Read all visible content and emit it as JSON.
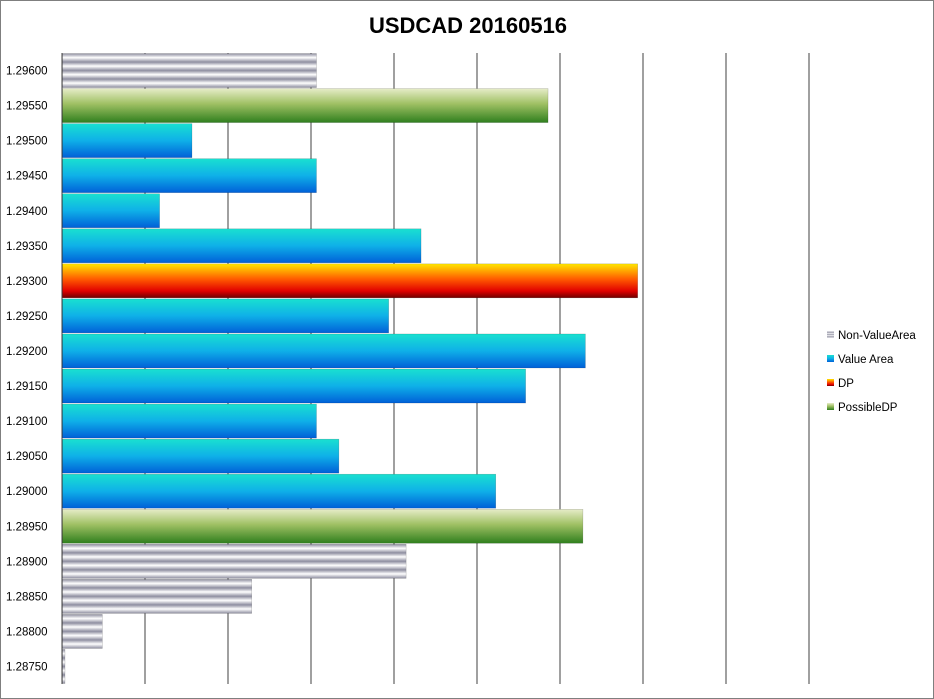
{
  "chart_data": {
    "type": "bar",
    "orientation": "horizontal",
    "title": "USDCAD 20160516",
    "xlabel": "",
    "ylabel": "",
    "grid": true,
    "legend_position": "right",
    "xlim": [
      0,
      26
    ],
    "categories": [
      "1.29600",
      "1.29550",
      "1.29500",
      "1.29450",
      "1.29400",
      "1.29350",
      "1.29300",
      "1.29250",
      "1.29200",
      "1.29150",
      "1.29100",
      "1.29050",
      "1.29000",
      "1.28950",
      "1.28900",
      "1.28850",
      "1.28800",
      "1.28750"
    ],
    "series": [
      {
        "name": "Non-ValueArea",
        "color": "#a6a6b4",
        "values": [
          10.2,
          null,
          null,
          null,
          null,
          null,
          null,
          null,
          null,
          null,
          null,
          null,
          null,
          null,
          13.8,
          7.6,
          1.6,
          0.1
        ]
      },
      {
        "name": "Value Area",
        "color": "#0d8fe0",
        "values": [
          null,
          null,
          5.2,
          10.2,
          3.9,
          14.4,
          null,
          13.1,
          21.0,
          18.6,
          10.2,
          11.1,
          17.4,
          null,
          null,
          null,
          null,
          null
        ]
      },
      {
        "name": "DP",
        "color": "#ff4000",
        "values": [
          null,
          null,
          null,
          null,
          null,
          null,
          23.1,
          null,
          null,
          null,
          null,
          null,
          null,
          null,
          null,
          null,
          null,
          null
        ]
      },
      {
        "name": "PossibleDP",
        "color": "#76a83a",
        "values": [
          null,
          19.5,
          null,
          null,
          null,
          null,
          null,
          null,
          null,
          null,
          null,
          null,
          null,
          20.9,
          null,
          null,
          null,
          null
        ]
      }
    ]
  }
}
